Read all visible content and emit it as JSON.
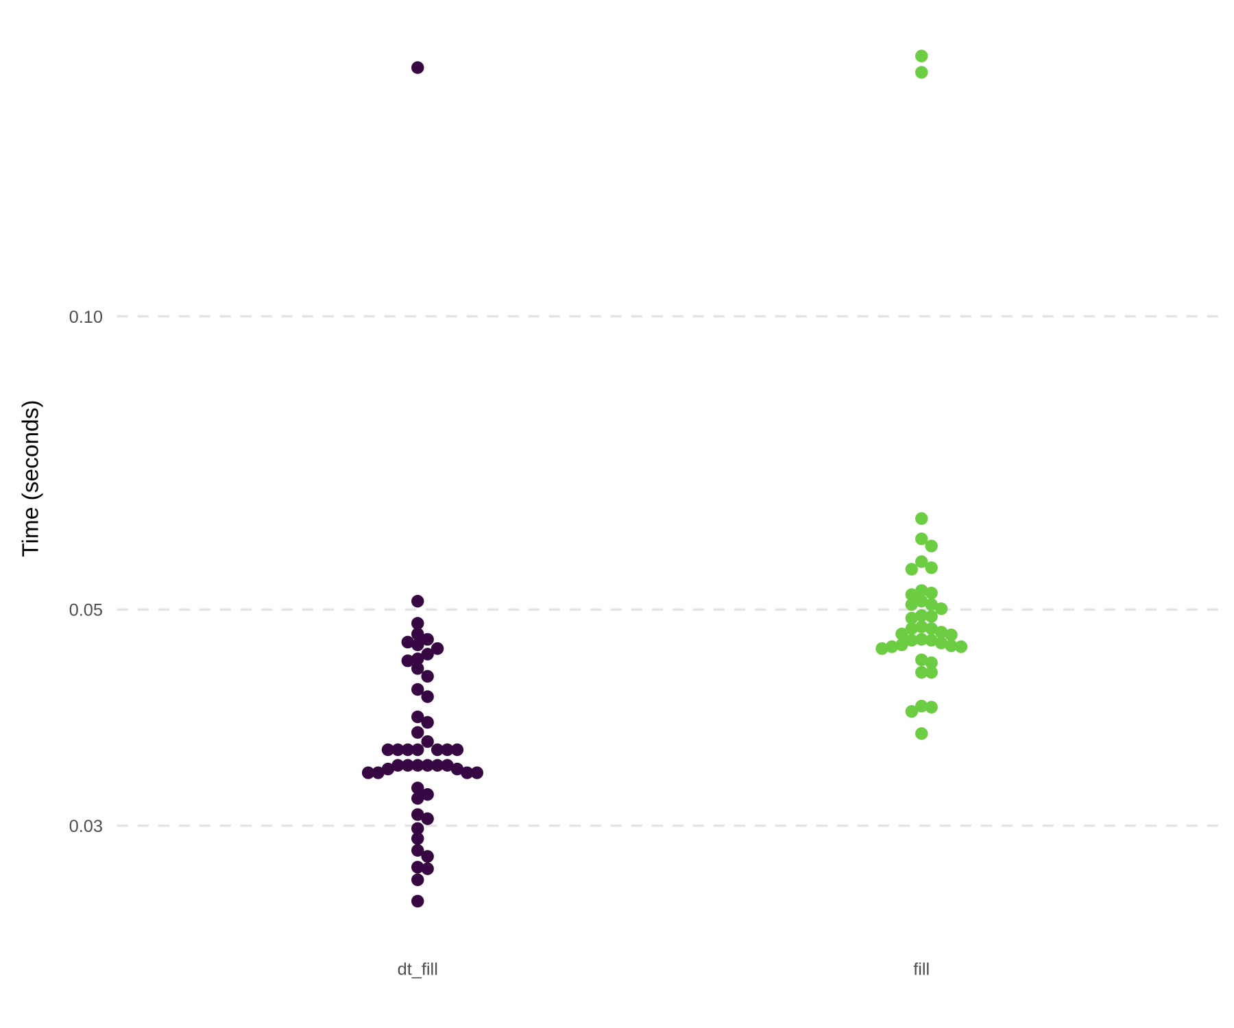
{
  "chart_data": {
    "type": "scatter",
    "subtype": "beeswarm",
    "title": "",
    "xlabel": "",
    "ylabel": "Time (seconds)",
    "y_scale": "log10",
    "ylim": [
      0.024,
      0.19
    ],
    "y_ticks": [
      0.03,
      0.05,
      0.1
    ],
    "y_tick_labels": [
      "0.03",
      "0.05",
      "0.10"
    ],
    "grid": "horizontal major, dashed",
    "legend": "none",
    "categories": [
      "dt_fill",
      "fill"
    ],
    "series": [
      {
        "category": "dt_fill",
        "color": "#360742",
        "values": [
          0.18,
          0.051,
          0.0484,
          0.0472,
          0.0466,
          0.0463,
          0.046,
          0.0456,
          0.045,
          0.0445,
          0.0443,
          0.0435,
          0.0427,
          0.0414,
          0.0407,
          0.0388,
          0.0383,
          0.0374,
          0.0366,
          0.0359,
          0.0359,
          0.0359,
          0.0359,
          0.0359,
          0.0359,
          0.0359,
          0.0346,
          0.0346,
          0.0346,
          0.0346,
          0.0346,
          0.0346,
          0.0343,
          0.0343,
          0.034,
          0.034,
          0.034,
          0.034,
          0.0328,
          0.0323,
          0.032,
          0.0308,
          0.0305,
          0.0298,
          0.0291,
          0.0283,
          0.0279,
          0.0272,
          0.0271,
          0.0264,
          0.0251
        ]
      },
      {
        "category": "fill",
        "color": "#6ccd43",
        "values": [
          0.185,
          0.178,
          0.062,
          0.0591,
          0.0581,
          0.056,
          0.0552,
          0.055,
          0.0523,
          0.052,
          0.0518,
          0.051,
          0.0506,
          0.0506,
          0.0501,
          0.0493,
          0.0492,
          0.049,
          0.048,
          0.0478,
          0.0478,
          0.0474,
          0.0472,
          0.0471,
          0.0466,
          0.0465,
          0.0465,
          0.0462,
          0.046,
          0.0459,
          0.0458,
          0.0458,
          0.0456,
          0.0444,
          0.0441,
          0.0431,
          0.0431,
          0.0398,
          0.0397,
          0.0393,
          0.0373
        ]
      }
    ]
  }
}
